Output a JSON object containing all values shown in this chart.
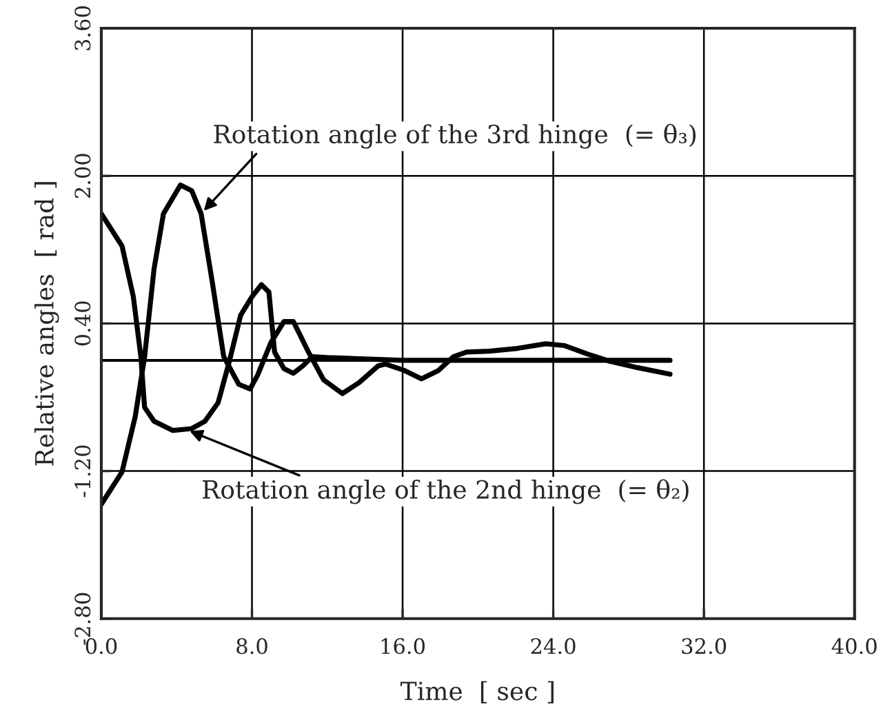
{
  "chart_data": {
    "type": "line",
    "xlabel": "Time  [ sec ]",
    "ylabel": "Relative angles  [ rad ]",
    "xlim": [
      0,
      40
    ],
    "ylim": [
      -2.8,
      3.6
    ],
    "xticks": [
      {
        "value": 0,
        "label": "0.0"
      },
      {
        "value": 8,
        "label": "8.0"
      },
      {
        "value": 16,
        "label": "16.0"
      },
      {
        "value": 24,
        "label": "24.0"
      },
      {
        "value": 32,
        "label": "32.0"
      },
      {
        "value": 40,
        "label": "40.0"
      }
    ],
    "yticks": [
      {
        "value": -2.8,
        "label": "-2.80"
      },
      {
        "value": -1.2,
        "label": "-1.20"
      },
      {
        "value": 0.4,
        "label": "0.40"
      },
      {
        "value": 2.0,
        "label": "2.00"
      },
      {
        "value": 3.6,
        "label": "3.60"
      }
    ],
    "grid": true,
    "marker": "none",
    "line_style": "solid",
    "legend": false,
    "series": [
      {
        "color": "#000000",
        "x": [
          0,
          30.2
        ],
        "values": [
          0,
          0
        ]
      },
      {
        "color": "#000000",
        "x": [
          0,
          1.1,
          1.7,
          2.1,
          2.3,
          2.8,
          3.8,
          4.8,
          5.5,
          6.2,
          6.8,
          7.4,
          8.0,
          8.5,
          8.9,
          9.2,
          9.7,
          10.2,
          10.7,
          11.2,
          12,
          16,
          24,
          30.2
        ],
        "values": [
          1.59,
          1.24,
          0.69,
          0.04,
          -0.51,
          -0.66,
          -0.76,
          -0.74,
          -0.66,
          -0.46,
          -0.01,
          0.49,
          0.69,
          0.82,
          0.74,
          0.09,
          -0.09,
          -0.14,
          -0.06,
          0.04,
          0.03,
          0.0,
          0.0,
          0.0
        ]
      },
      {
        "color": "#000000",
        "x": [
          0,
          1.1,
          1.8,
          2.3,
          2.8,
          3.3,
          4.2,
          4.8,
          5.3,
          5.9,
          6.5,
          7.3,
          7.9,
          8.3,
          9.0,
          9.7,
          10.2,
          11.0,
          11.8,
          12.8,
          13.7,
          14.7,
          15.1,
          16.1,
          17.0,
          17.9,
          18.7,
          19.4,
          20.6,
          22.1,
          23.6,
          24.6,
          25.8,
          27.0,
          28.5,
          30.2
        ],
        "values": [
          -1.56,
          -1.21,
          -0.61,
          0.04,
          0.99,
          1.59,
          1.9,
          1.84,
          1.59,
          0.84,
          0.04,
          -0.26,
          -0.31,
          -0.16,
          0.19,
          0.42,
          0.42,
          0.09,
          -0.21,
          -0.36,
          -0.24,
          -0.06,
          -0.04,
          -0.11,
          -0.2,
          -0.11,
          0.04,
          0.09,
          0.1,
          0.13,
          0.18,
          0.16,
          0.07,
          -0.01,
          -0.08,
          -0.15
        ]
      }
    ],
    "annotations": [
      {
        "text": "Rotation angle of the 3rd hinge  (= θ₃)",
        "x": 5.3,
        "y": 1.59
      },
      {
        "text": "Rotation angle of the 2nd hinge  (= θ₂)",
        "x": 4.5,
        "y": -0.75
      }
    ]
  }
}
